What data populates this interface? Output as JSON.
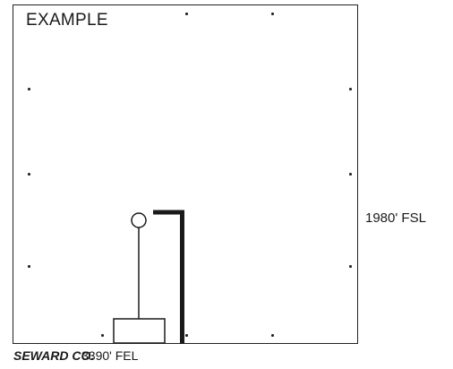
{
  "plat": {
    "title": "EXAMPLE"
  },
  "labels": {
    "fsl": "1980' FSL",
    "county": "SEWARD CO.",
    "fel": "3390' FEL"
  },
  "colors": {
    "line": "#1a1a1a",
    "background": "#ffffff"
  },
  "icons": {
    "well": "circle-outline",
    "tank": "rectangle-outline",
    "corner_markers": "dot"
  }
}
